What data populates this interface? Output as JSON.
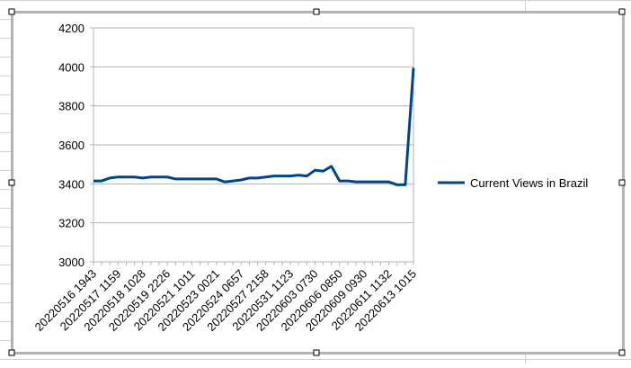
{
  "chart_data": {
    "type": "line",
    "categories": [
      "20220516 1943",
      null,
      null,
      "20220517 1159",
      null,
      null,
      "20220518 1028",
      null,
      null,
      "20220519 2226",
      null,
      null,
      "20220521 1011",
      null,
      null,
      "20220523 0021",
      null,
      null,
      "20220524 0657",
      null,
      null,
      "20220527 2158",
      null,
      null,
      "20220531 1123",
      null,
      null,
      "20220603 0730",
      null,
      null,
      "20220606 0850",
      null,
      null,
      "20220609 0930",
      null,
      null,
      "20220611 1132",
      null,
      null,
      "20220613 1015"
    ],
    "series": [
      {
        "name": "Current Views in Brazil",
        "color": "#004586",
        "values": [
          3415,
          3415,
          3430,
          3435,
          3435,
          3435,
          3430,
          3435,
          3435,
          3435,
          3425,
          3425,
          3425,
          3425,
          3425,
          3425,
          3410,
          3415,
          3420,
          3430,
          3430,
          3435,
          3440,
          3440,
          3440,
          3445,
          3440,
          3470,
          3465,
          3490,
          3415,
          3415,
          3410,
          3410,
          3410,
          3410,
          3410,
          3395,
          3395,
          3995
        ]
      }
    ],
    "ylim": [
      3000,
      4200
    ],
    "yticks": [
      3000,
      3200,
      3400,
      3600,
      3800,
      4000,
      4200
    ],
    "grid": true,
    "legend": "right"
  }
}
